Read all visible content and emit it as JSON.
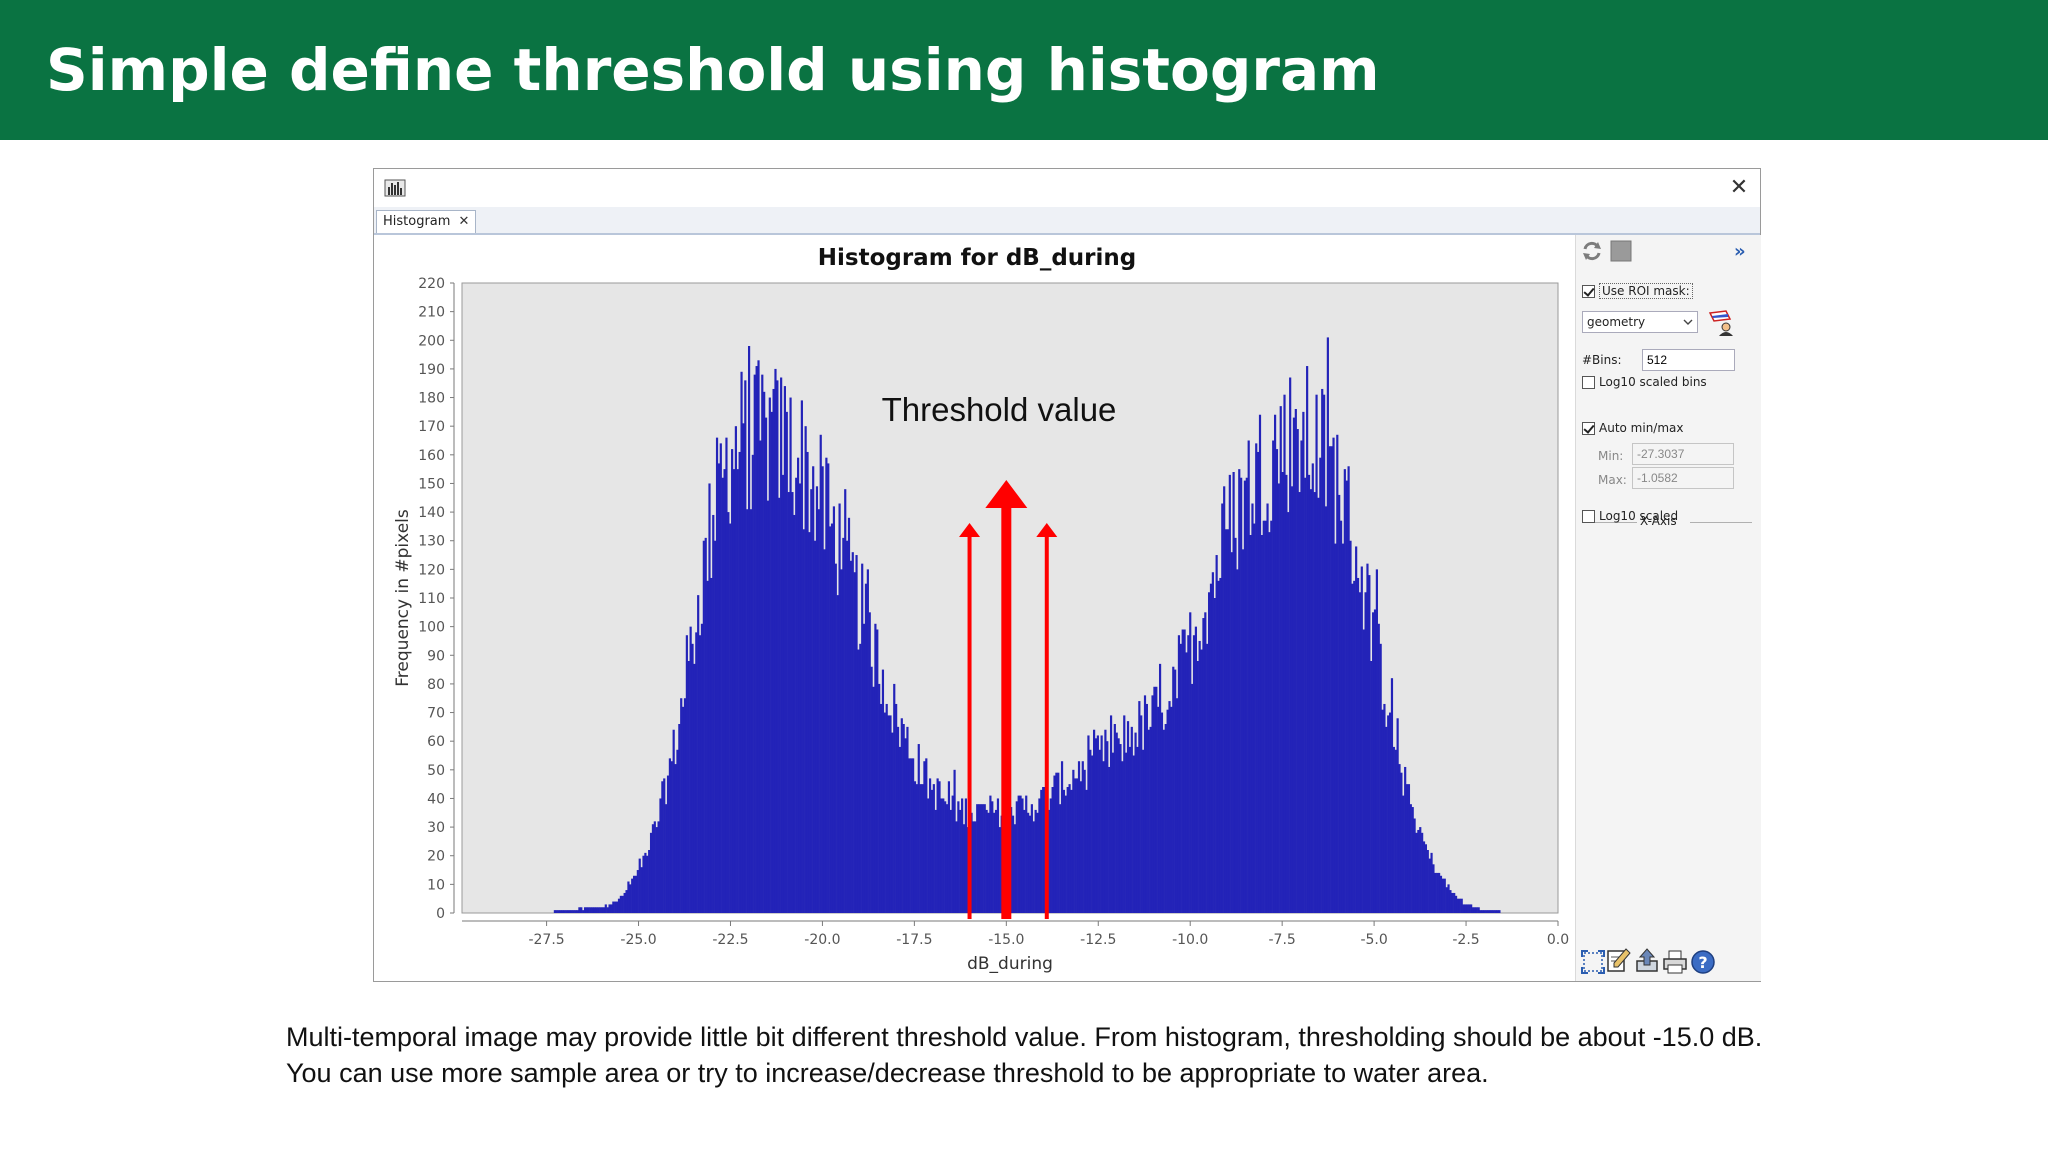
{
  "slide": {
    "title": "Simple define threshold using histogram",
    "caption_lines": [
      "Multi-temporal image may provide little bit different threshold value. From histogram, thresholding should be about -15.0 dB.",
      "You can use more sample area or try to increase/decrease threshold to be appropriate to water area."
    ]
  },
  "window": {
    "close_glyph": "✕",
    "tab_label": "Histogram",
    "tab_close_glyph": "✕"
  },
  "side_panel": {
    "use_roi_label": "Use ROI mask:",
    "use_roi_checked": true,
    "roi_select_value": "geometry",
    "bins_label": "#Bins:",
    "bins_value": "512",
    "log10_bins_label": "Log10 scaled bins",
    "log10_bins_checked": false,
    "xaxis_section": "X-Axis",
    "auto_minmax_label": "Auto min/max",
    "auto_minmax_checked": true,
    "min_label": "Min:",
    "min_value": "-27.3037",
    "max_label": "Max:",
    "max_value": "-1.0582",
    "log10_scaled_label": "Log10 scaled",
    "log10_scaled_checked": false,
    "collapse_glyph": "»"
  },
  "chart_data": {
    "type": "bar",
    "title": "Histogram for dB_during",
    "xlabel": "dB_during",
    "ylabel": "Frequency in #pixels",
    "xlim": [
      -29.8,
      0.0
    ],
    "ylim": [
      0,
      220
    ],
    "xticks": [
      -27.5,
      -25.0,
      -22.5,
      -20.0,
      -17.5,
      -15.0,
      -12.5,
      -10.0,
      -7.5,
      -5.0,
      -2.5,
      0.0
    ],
    "xtick_labels": [
      "-27.5",
      "-25.0",
      "-22.5",
      "-20.0",
      "-17.5",
      "-15.0",
      "-12.5",
      "-10.0",
      "-7.5",
      "-5.0",
      "-2.5",
      "0.0"
    ],
    "yticks": [
      0,
      10,
      20,
      30,
      40,
      50,
      60,
      70,
      80,
      90,
      100,
      110,
      120,
      130,
      140,
      150,
      160,
      170,
      180,
      190,
      200,
      210,
      220
    ],
    "bins": 512,
    "bin_range": [
      -27.3037,
      -1.0582
    ],
    "bar_color": "#2323b8",
    "background": "#e6e6e6",
    "grid": false,
    "legend": "none",
    "distribution_envelope": [
      {
        "x": -27.3,
        "y": 1
      },
      {
        "x": -26.0,
        "y": 2
      },
      {
        "x": -25.5,
        "y": 5
      },
      {
        "x": -25.0,
        "y": 15
      },
      {
        "x": -24.5,
        "y": 32
      },
      {
        "x": -24.0,
        "y": 60
      },
      {
        "x": -23.5,
        "y": 100
      },
      {
        "x": -23.0,
        "y": 140
      },
      {
        "x": -22.5,
        "y": 165
      },
      {
        "x": -22.0,
        "y": 170
      },
      {
        "x": -21.5,
        "y": 170
      },
      {
        "x": -21.0,
        "y": 168
      },
      {
        "x": -20.5,
        "y": 160
      },
      {
        "x": -20.0,
        "y": 145
      },
      {
        "x": -19.5,
        "y": 130
      },
      {
        "x": -19.0,
        "y": 110
      },
      {
        "x": -18.5,
        "y": 90
      },
      {
        "x": -18.0,
        "y": 70
      },
      {
        "x": -17.5,
        "y": 55
      },
      {
        "x": -17.0,
        "y": 44
      },
      {
        "x": -16.5,
        "y": 38
      },
      {
        "x": -16.0,
        "y": 36
      },
      {
        "x": -15.0,
        "y": 36
      },
      {
        "x": -14.0,
        "y": 40
      },
      {
        "x": -13.5,
        "y": 46
      },
      {
        "x": -13.0,
        "y": 50
      },
      {
        "x": -12.5,
        "y": 55
      },
      {
        "x": -12.0,
        "y": 60
      },
      {
        "x": -11.5,
        "y": 65
      },
      {
        "x": -11.0,
        "y": 70
      },
      {
        "x": -10.5,
        "y": 80
      },
      {
        "x": -10.0,
        "y": 95
      },
      {
        "x": -9.5,
        "y": 115
      },
      {
        "x": -9.0,
        "y": 135
      },
      {
        "x": -8.5,
        "y": 150
      },
      {
        "x": -8.0,
        "y": 160
      },
      {
        "x": -7.5,
        "y": 168
      },
      {
        "x": -7.0,
        "y": 170
      },
      {
        "x": -6.5,
        "y": 165
      },
      {
        "x": -6.0,
        "y": 155
      },
      {
        "x": -5.5,
        "y": 130
      },
      {
        "x": -5.0,
        "y": 100
      },
      {
        "x": -4.5,
        "y": 65
      },
      {
        "x": -4.0,
        "y": 38
      },
      {
        "x": -3.5,
        "y": 20
      },
      {
        "x": -3.0,
        "y": 9
      },
      {
        "x": -2.5,
        "y": 3
      },
      {
        "x": -2.0,
        "y": 1
      },
      {
        "x": -1.06,
        "y": 0
      }
    ],
    "annotation": {
      "text": "Threshold value",
      "main_arrow_x": -15.0,
      "side_arrows_x": [
        -16.0,
        -13.9
      ],
      "arrow_color": "#ff0000"
    }
  }
}
